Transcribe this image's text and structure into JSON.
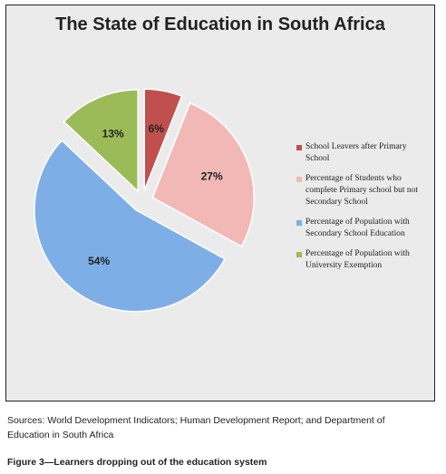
{
  "chart_data": {
    "type": "pie",
    "title": "The State of Education in South Africa",
    "slices": [
      {
        "label": "School Leavers after Primary School",
        "value": 6,
        "display": "6%",
        "color": "#c0504d",
        "exploded": true
      },
      {
        "label": "Percentage of Students who complete Primary school but not Secondary School",
        "value": 27,
        "display": "27%",
        "color": "#f2b8b6",
        "exploded": true
      },
      {
        "label": "Percentage of Population with Secondary School Education",
        "value": 54,
        "display": "54%",
        "color": "#7eaee6",
        "exploded": true
      },
      {
        "label": "Percentage of Population with University Exemption",
        "value": 13,
        "display": "13%",
        "color": "#9bbb59",
        "exploded": true
      }
    ],
    "legend_position": "right"
  },
  "legend": [
    {
      "label": "School Leavers after Primary School",
      "color": "#c0504d"
    },
    {
      "label": "Percentage of Students who complete Primary school but not Secondary School",
      "color": "#f2b8b6"
    },
    {
      "label": "Percentage of Population with Secondary School Education",
      "color": "#7eaee6"
    },
    {
      "label": "Percentage of Population with University Exemption",
      "color": "#9bbb59"
    }
  ],
  "sources": "Sources: World Development Indicators; Human Development Report; and Department of Education in South Africa",
  "caption": "Figure 3—Learners dropping out of the education system"
}
